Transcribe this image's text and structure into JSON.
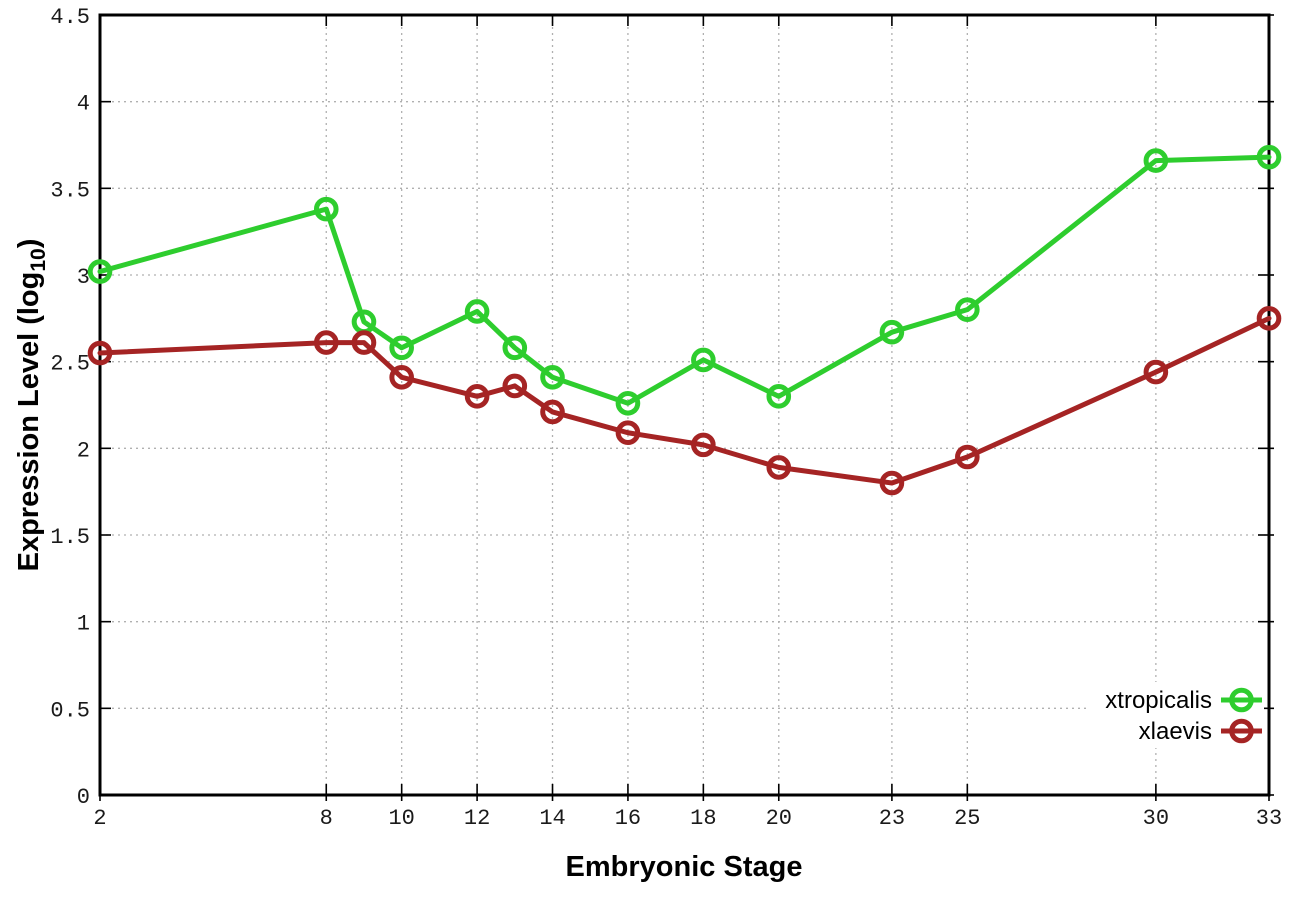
{
  "chart_data": {
    "type": "line",
    "title": "",
    "xlabel": "Embryonic Stage",
    "ylabel": {
      "pre": "Expression Level (log",
      "sub": "10",
      "post": ")"
    },
    "x_categories_label": "Embryonic Stage",
    "x": [
      2,
      8,
      9,
      10,
      12,
      13,
      14,
      16,
      18,
      20,
      23,
      25,
      30,
      33
    ],
    "series": [
      {
        "name": "xtropicalis",
        "color": "#2ECD2E",
        "values": [
          3.02,
          3.38,
          2.73,
          2.58,
          2.79,
          2.58,
          2.41,
          2.26,
          2.51,
          2.3,
          2.67,
          2.8,
          3.66,
          3.68
        ]
      },
      {
        "name": "xlaevis",
        "color": "#A52424",
        "values": [
          2.55,
          2.61,
          2.61,
          2.41,
          2.3,
          2.36,
          2.21,
          2.09,
          2.02,
          1.89,
          1.8,
          1.95,
          2.44,
          2.75
        ]
      }
    ],
    "xlim": [
      2,
      33
    ],
    "ylim": [
      0,
      4.5
    ],
    "xticks": [
      2,
      8,
      10,
      12,
      14,
      16,
      18,
      20,
      23,
      25,
      30,
      33
    ],
    "xtick_labels": [
      "2",
      "8",
      "10",
      "12",
      "14",
      "16",
      "18",
      "20",
      "23",
      "25",
      "30",
      "33"
    ],
    "yticks": [
      0,
      0.5,
      1,
      1.5,
      2,
      2.5,
      3,
      3.5,
      4,
      4.5
    ],
    "ytick_labels": [
      "0",
      "0.5",
      "1",
      "1.5",
      "2",
      "2.5",
      "3",
      "3.5",
      "4",
      "4.5"
    ],
    "grid": true,
    "grid_style": "dotted",
    "legend_position": "bottom-right",
    "marker": "open-circle",
    "colors": {
      "background": "#ffffff",
      "border": "#000000",
      "grid": "#b0b0b0",
      "tick_text": "#1a1a1a"
    }
  }
}
